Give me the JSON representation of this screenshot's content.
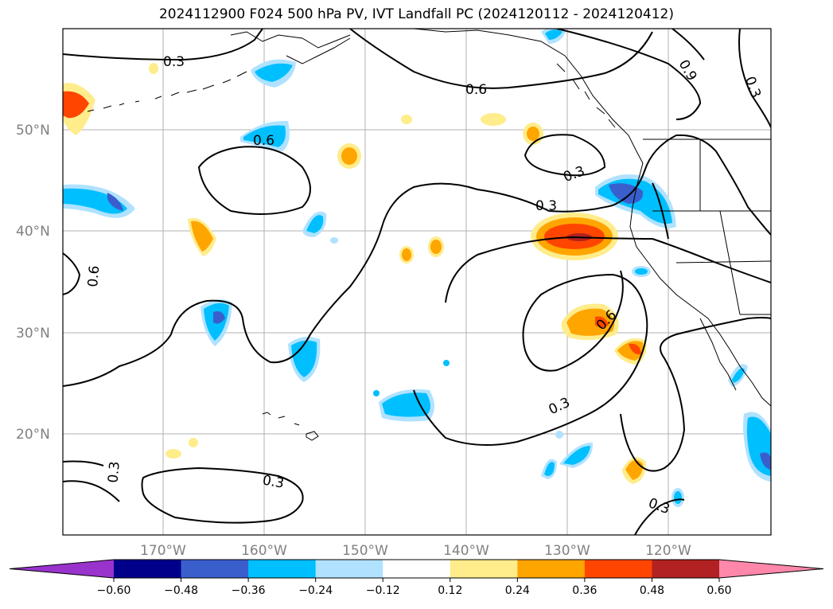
{
  "title": "2024112900 F024 500 hPa PV, IVT Landfall PC (2024120112 - 2024120412)",
  "axes": {
    "lat_labels": [
      "50°N",
      "40°N",
      "30°N",
      "20°N"
    ],
    "lon_labels": [
      "170°W",
      "160°W",
      "150°W",
      "140°W",
      "130°W",
      "120°W"
    ]
  },
  "contour_labels": [
    "0.3",
    "0.6",
    "0.6",
    "0.9",
    "0.3",
    "0.3",
    "0.3",
    "0.6",
    "0.6",
    "0.3",
    "0.3",
    "0.3",
    "0.3"
  ],
  "colorbar": {
    "ticks": [
      "−0.60",
      "−0.48",
      "−0.36",
      "−0.24",
      "−0.12",
      "0.12",
      "0.24",
      "0.36",
      "0.48",
      "0.60"
    ],
    "colors": [
      "#9933cc",
      "#00008b",
      "#3a5fcd",
      "#00bfff",
      "#b0e2ff",
      "#ffffff",
      "#ffec8b",
      "#ffa500",
      "#ff4500",
      "#b22222",
      "#ff88aa"
    ]
  },
  "palette": {
    "blue_light": "#b0e2ff",
    "blue": "#00bfff",
    "blue_dark": "#3a5fcd",
    "yellow": "#ffec8b",
    "orange": "#ffa500",
    "red_orange": "#ff4500",
    "dark_red": "#b22222"
  }
}
